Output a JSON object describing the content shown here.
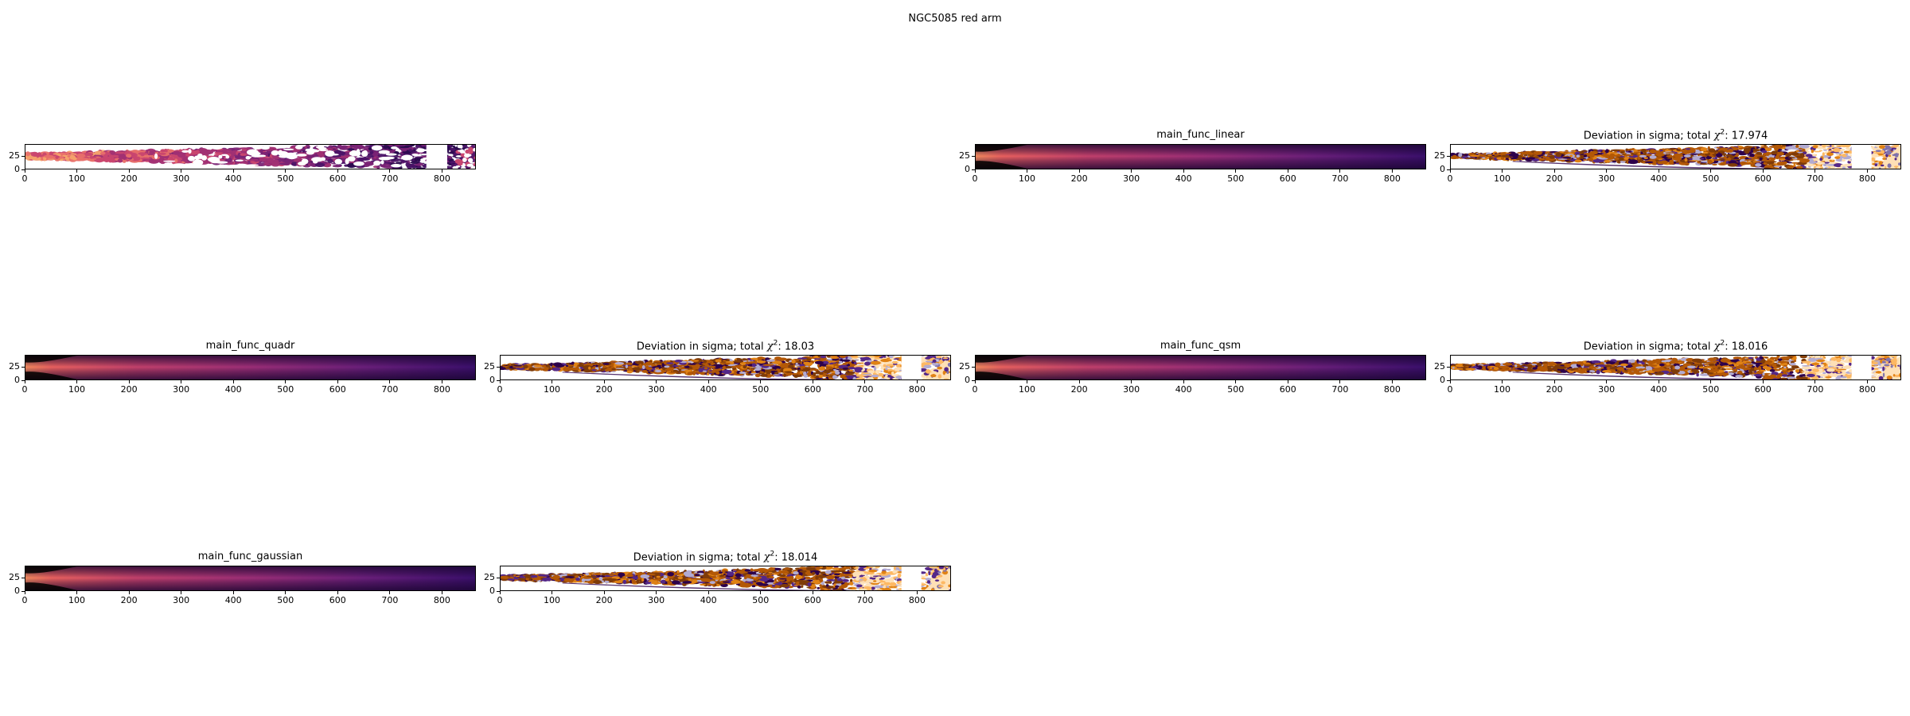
{
  "suptitle": "NGC5085 red arm",
  "chart_data": [
    {
      "type": "heatmap",
      "panel": "observed",
      "title": "",
      "image_kind": "observed",
      "colormap": "magma",
      "xlim": [
        0,
        865
      ],
      "ylim": [
        0,
        48
      ],
      "x_ticks": [
        0,
        100,
        200,
        300,
        400,
        500,
        600,
        700,
        800
      ],
      "y_ticks": [
        0,
        25
      ],
      "masked_region_x": [
        770,
        810
      ]
    },
    {
      "type": "heatmap",
      "panel": "model",
      "title": "main_func_linear",
      "image_kind": "model",
      "colormap": "magma",
      "xlim": [
        0,
        865
      ],
      "ylim": [
        0,
        48
      ],
      "x_ticks": [
        0,
        100,
        200,
        300,
        400,
        500,
        600,
        700,
        800
      ],
      "y_ticks": [
        0,
        25
      ]
    },
    {
      "type": "heatmap",
      "panel": "residual",
      "title": "Deviation in sigma; total χ²: 17.974",
      "title_prefix": "Deviation in sigma; total ",
      "title_value": ": 17.974",
      "chi2": 17.974,
      "image_kind": "residual",
      "colormap": "PuOr",
      "xlim": [
        0,
        865
      ],
      "ylim": [
        0,
        48
      ],
      "x_ticks": [
        0,
        100,
        200,
        300,
        400,
        500,
        600,
        700,
        800
      ],
      "y_ticks": [
        0,
        25
      ]
    },
    {
      "type": "heatmap",
      "panel": "model",
      "title": "main_func_quadr",
      "image_kind": "model",
      "colormap": "magma",
      "xlim": [
        0,
        865
      ],
      "ylim": [
        0,
        48
      ],
      "x_ticks": [
        0,
        100,
        200,
        300,
        400,
        500,
        600,
        700,
        800
      ],
      "y_ticks": [
        0,
        25
      ]
    },
    {
      "type": "heatmap",
      "panel": "residual",
      "title": "Deviation in sigma; total χ²: 18.03",
      "title_prefix": "Deviation in sigma; total ",
      "title_value": ": 18.03",
      "chi2": 18.03,
      "image_kind": "residual",
      "colormap": "PuOr",
      "xlim": [
        0,
        865
      ],
      "ylim": [
        0,
        48
      ],
      "x_ticks": [
        0,
        100,
        200,
        300,
        400,
        500,
        600,
        700,
        800
      ],
      "y_ticks": [
        0,
        25
      ]
    },
    {
      "type": "heatmap",
      "panel": "model",
      "title": "main_func_qsm",
      "image_kind": "model",
      "colormap": "magma",
      "xlim": [
        0,
        865
      ],
      "ylim": [
        0,
        48
      ],
      "x_ticks": [
        0,
        100,
        200,
        300,
        400,
        500,
        600,
        700,
        800
      ],
      "y_ticks": [
        0,
        25
      ]
    },
    {
      "type": "heatmap",
      "panel": "residual",
      "title": "Deviation in sigma; total χ²: 18.016",
      "title_prefix": "Deviation in sigma; total ",
      "title_value": ": 18.016",
      "chi2": 18.016,
      "image_kind": "residual",
      "colormap": "PuOr",
      "xlim": [
        0,
        865
      ],
      "ylim": [
        0,
        48
      ],
      "x_ticks": [
        0,
        100,
        200,
        300,
        400,
        500,
        600,
        700,
        800
      ],
      "y_ticks": [
        0,
        25
      ]
    },
    {
      "type": "heatmap",
      "panel": "model",
      "title": "main_func_gaussian",
      "image_kind": "model",
      "colormap": "magma",
      "xlim": [
        0,
        865
      ],
      "ylim": [
        0,
        48
      ],
      "x_ticks": [
        0,
        100,
        200,
        300,
        400,
        500,
        600,
        700,
        800
      ],
      "y_ticks": [
        0,
        25
      ]
    },
    {
      "type": "heatmap",
      "panel": "residual",
      "title": "Deviation in sigma; total χ²: 18.014",
      "title_prefix": "Deviation in sigma; total ",
      "title_value": ": 18.014",
      "chi2": 18.014,
      "image_kind": "residual",
      "colormap": "PuOr",
      "xlim": [
        0,
        865
      ],
      "ylim": [
        0,
        48
      ],
      "x_ticks": [
        0,
        100,
        200,
        300,
        400,
        500,
        600,
        700,
        800
      ],
      "y_ticks": [
        0,
        25
      ]
    }
  ]
}
